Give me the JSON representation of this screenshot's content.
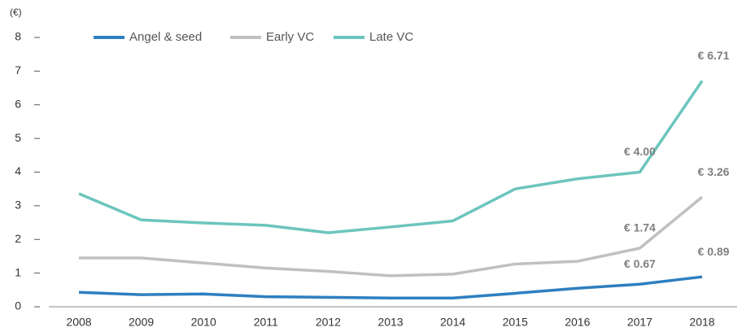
{
  "chart_data": {
    "type": "line",
    "unit_label": "(€)",
    "categories": [
      "2008",
      "2009",
      "2010",
      "2011",
      "2012",
      "2013",
      "2014",
      "2015",
      "2016",
      "2017",
      "2018"
    ],
    "series": [
      {
        "name": "Angel & seed",
        "color": "#2e7fc0",
        "values": [
          0.43,
          0.36,
          0.38,
          0.3,
          0.28,
          0.26,
          0.26,
          0.4,
          0.55,
          0.67,
          0.89
        ],
        "value_labels": [
          null,
          null,
          null,
          null,
          null,
          null,
          null,
          null,
          null,
          "€ 0.67",
          "€ 0.89"
        ]
      },
      {
        "name": "Early VC",
        "color": "#c0c0c0",
        "values": [
          1.45,
          1.45,
          1.3,
          1.15,
          1.05,
          0.92,
          0.97,
          1.27,
          1.35,
          1.74,
          3.26
        ],
        "value_labels": [
          null,
          null,
          null,
          null,
          null,
          null,
          null,
          null,
          null,
          "€ 1.74",
          "€ 3.26"
        ]
      },
      {
        "name": "Late VC",
        "color": "#6cc5bd",
        "values": [
          3.36,
          2.58,
          2.49,
          2.42,
          2.2,
          2.37,
          2.55,
          3.5,
          3.8,
          4.0,
          6.71
        ],
        "value_labels": [
          null,
          null,
          null,
          null,
          null,
          null,
          null,
          null,
          null,
          "€ 4.00",
          "€ 6.71"
        ]
      }
    ],
    "ylim": [
      0,
      8
    ],
    "yticks": [
      0,
      1,
      2,
      3,
      4,
      5,
      6,
      7,
      8
    ],
    "legend": "top"
  }
}
